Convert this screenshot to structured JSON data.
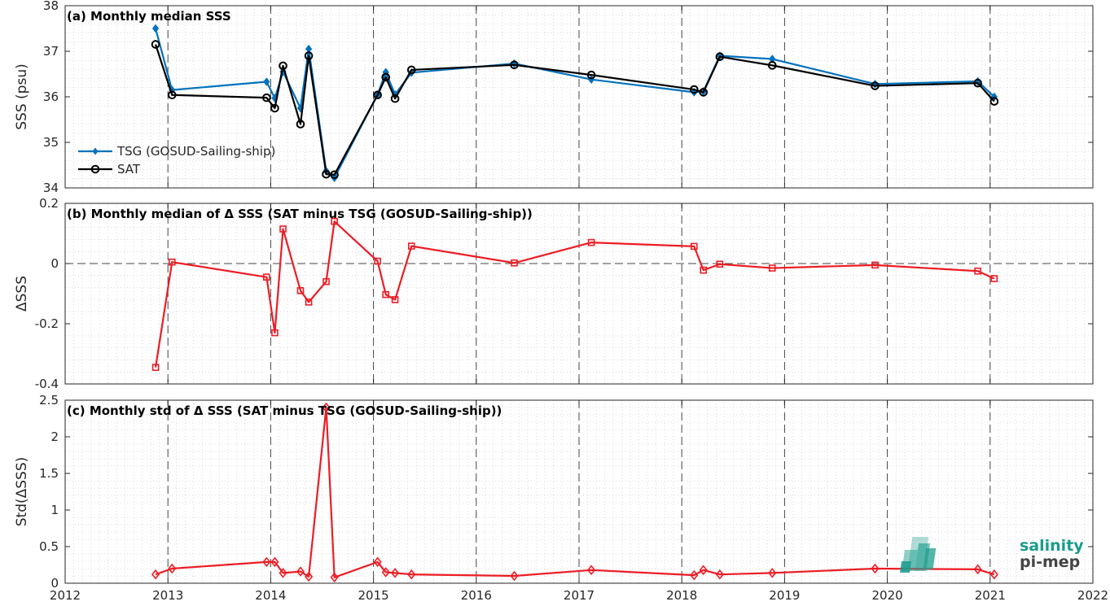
{
  "x_axis": {
    "ticks": [
      "2012",
      "2013",
      "2014",
      "2015",
      "2016",
      "2017",
      "2018",
      "2019",
      "2020",
      "2021",
      "2022"
    ],
    "range": [
      2012,
      2022
    ],
    "dashed_year_lines": [
      2013,
      2014,
      2015,
      2016,
      2017,
      2018,
      2019,
      2020,
      2021
    ]
  },
  "logo": {
    "line1": "salinity",
    "line2": "pi-mep",
    "color": "#1a9c8c"
  },
  "chart_data": [
    {
      "type": "line",
      "title": "(a) Monthly median SSS",
      "ylabel": "SSS (psu)",
      "ylim": [
        34,
        38
      ],
      "yticks": [
        "34",
        "35",
        "36",
        "37",
        "38"
      ],
      "grid": "minor dotted",
      "legend": {
        "placement": "lower-left",
        "entries": [
          "TSG (GOSUD-Sailing-ship)",
          "SAT"
        ]
      },
      "series": [
        {
          "name": "TSG (GOSUD-Sailing-ship)",
          "color": "#0072BD",
          "marker": "diamond-filled",
          "x": [
            2012.88,
            2013.04,
            2013.96,
            2014.04,
            2014.12,
            2014.29,
            2014.37,
            2014.54,
            2014.62,
            2015.04,
            2015.12,
            2015.21,
            2015.37,
            2016.37,
            2017.12,
            2018.12,
            2018.21,
            2018.37,
            2018.88,
            2019.88,
            2020.88,
            2021.04
          ],
          "values": [
            37.5,
            36.15,
            36.33,
            35.97,
            36.55,
            35.75,
            37.05,
            34.37,
            34.22,
            36.05,
            36.54,
            36.05,
            36.53,
            36.73,
            36.38,
            36.1,
            36.12,
            36.9,
            36.83,
            36.28,
            36.34,
            36.0
          ]
        },
        {
          "name": "SAT",
          "color": "#000000",
          "marker": "circle-open",
          "x": [
            2012.88,
            2013.04,
            2013.96,
            2014.04,
            2014.12,
            2014.29,
            2014.37,
            2014.54,
            2014.62,
            2015.04,
            2015.12,
            2015.21,
            2015.37,
            2016.37,
            2017.12,
            2018.12,
            2018.21,
            2018.37,
            2018.88,
            2019.88,
            2020.88,
            2021.04
          ],
          "values": [
            37.15,
            36.04,
            35.98,
            35.75,
            36.68,
            35.4,
            36.9,
            34.3,
            34.29,
            36.04,
            36.43,
            35.96,
            36.59,
            36.7,
            36.48,
            36.16,
            36.1,
            36.88,
            36.69,
            36.24,
            36.3,
            35.9
          ]
        }
      ]
    },
    {
      "type": "line",
      "title": "(b) Monthly median of Δ SSS (SAT minus TSG (GOSUD-Sailing-ship))",
      "ylabel": "ΔSSS",
      "ylim": [
        -0.4,
        0.2
      ],
      "yticks": [
        "-0.4",
        "-0.2",
        "0",
        "0.2"
      ],
      "grid": "minor dotted",
      "reference_line": 0,
      "series": [
        {
          "name": "",
          "color": "#ED1C24",
          "marker": "square-open",
          "x": [
            2012.88,
            2013.04,
            2013.96,
            2014.04,
            2014.12,
            2014.29,
            2014.37,
            2014.54,
            2014.62,
            2015.04,
            2015.12,
            2015.21,
            2015.37,
            2016.37,
            2017.12,
            2018.12,
            2018.21,
            2018.37,
            2018.88,
            2019.88,
            2020.88,
            2021.04
          ],
          "values": [
            -0.345,
            0.005,
            -0.045,
            -0.23,
            0.115,
            -0.09,
            -0.128,
            -0.06,
            0.14,
            0.008,
            -0.103,
            -0.12,
            0.058,
            0.002,
            0.07,
            0.057,
            -0.022,
            -0.002,
            -0.015,
            -0.005,
            -0.025,
            -0.05
          ]
        }
      ]
    },
    {
      "type": "line",
      "title": "(c) Monthly std of Δ SSS (SAT minus TSG (GOSUD-Sailing-ship))",
      "ylabel": "Std(ΔSSS)",
      "ylim": [
        0,
        2.5
      ],
      "yticks": [
        "0",
        "0.5",
        "1",
        "1.5",
        "2",
        "2.5"
      ],
      "grid": "minor dotted",
      "series": [
        {
          "name": "",
          "color": "#ED1C24",
          "marker": "diamond-open",
          "x": [
            2012.88,
            2013.04,
            2013.96,
            2014.04,
            2014.12,
            2014.29,
            2014.37,
            2014.54,
            2014.62,
            2015.04,
            2015.12,
            2015.21,
            2015.37,
            2016.37,
            2017.12,
            2018.12,
            2018.21,
            2018.37,
            2018.88,
            2019.88,
            2020.88,
            2021.04
          ],
          "values": [
            0.12,
            0.2,
            0.29,
            0.29,
            0.14,
            0.16,
            0.09,
            2.4,
            0.08,
            0.29,
            0.15,
            0.14,
            0.12,
            0.1,
            0.18,
            0.11,
            0.18,
            0.12,
            0.14,
            0.2,
            0.19,
            0.12
          ]
        }
      ]
    }
  ]
}
